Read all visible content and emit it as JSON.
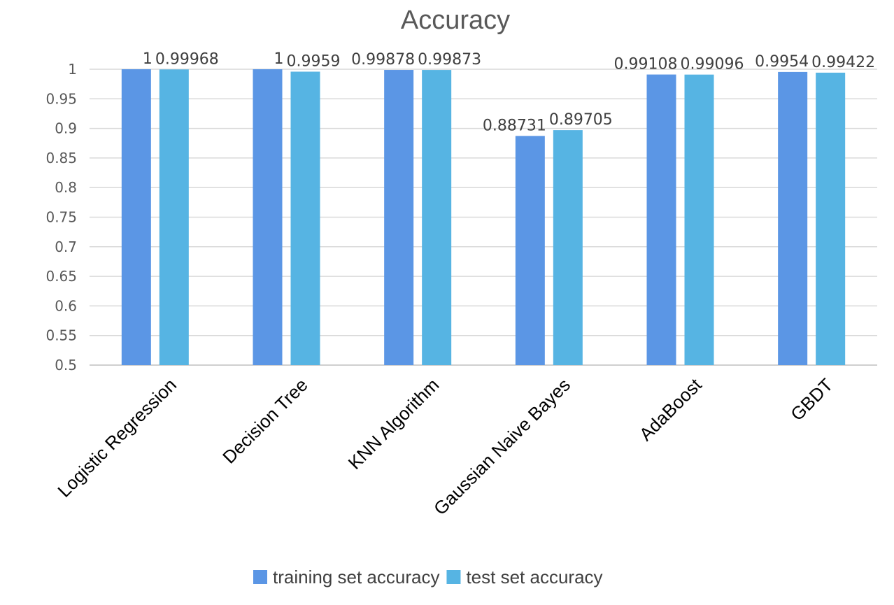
{
  "chart_data": {
    "type": "bar",
    "title": "Accuracy",
    "xlabel": "",
    "ylabel": "",
    "ylim": [
      0.5,
      1
    ],
    "ytick_step": 0.05,
    "yticks": [
      "0.5",
      "0.55",
      "0.6",
      "0.65",
      "0.7",
      "0.75",
      "0.8",
      "0.85",
      "0.9",
      "0.95",
      "1"
    ],
    "grid": true,
    "legend_position": "bottom",
    "categories": [
      "Logistic Regression",
      "Decision Tree",
      "KNN Algorithm",
      "Gaussian Naive Bayes",
      "AdaBoost",
      "GBDT"
    ],
    "series": [
      {
        "name": "training set accuracy",
        "color": "#5b96e5",
        "values": [
          1,
          1,
          0.99878,
          0.88731,
          0.99108,
          0.9954
        ],
        "labels": [
          "1",
          "1",
          "0.99878",
          "0.88731",
          "0.99108",
          "0.9954"
        ]
      },
      {
        "name": "test set accuracy",
        "color": "#56b4e3",
        "values": [
          0.99968,
          0.9959,
          0.99873,
          0.89705,
          0.99096,
          0.99422
        ],
        "labels": [
          "0.99968",
          "0.9959",
          "0.99873",
          "0.89705",
          "0.99096",
          "0.99422"
        ]
      }
    ]
  }
}
